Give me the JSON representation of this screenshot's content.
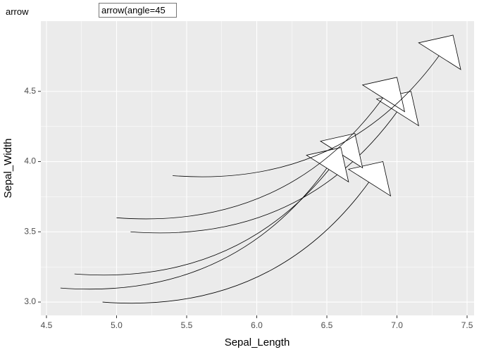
{
  "ui": {
    "label": "arrow",
    "input_value": "arrow(angle=45"
  },
  "chart_data": {
    "type": "curve",
    "x_label": "Sepal_Length",
    "y_label": "Sepal_Width",
    "segments": [
      {
        "x": 5.1,
        "y": 3.5,
        "xend": 7.1,
        "yend": 4.5
      },
      {
        "x": 4.9,
        "y": 3.0,
        "xend": 6.9,
        "yend": 4.0
      },
      {
        "x": 4.7,
        "y": 3.2,
        "xend": 6.7,
        "yend": 4.2
      },
      {
        "x": 4.6,
        "y": 3.1,
        "xend": 6.6,
        "yend": 4.1
      },
      {
        "x": 5.0,
        "y": 3.6,
        "xend": 7.0,
        "yend": 4.6
      },
      {
        "x": 5.4,
        "y": 3.9,
        "xend": 7.4,
        "yend": 4.9
      }
    ],
    "arrow_angle": 45,
    "xlim": [
      4.46,
      7.55
    ],
    "ylim": [
      2.905,
      5.0
    ],
    "xticks": [
      {
        "value": 4.5,
        "label": "4.5"
      },
      {
        "value": 5.0,
        "label": "5.0"
      },
      {
        "value": 5.5,
        "label": "5.5"
      },
      {
        "value": 6.0,
        "label": "6.0"
      },
      {
        "value": 6.5,
        "label": "6.5"
      },
      {
        "value": 7.0,
        "label": "7.0"
      },
      {
        "value": 7.5,
        "label": "7.5"
      }
    ],
    "yticks": [
      {
        "value": 3.0,
        "label": "3.0"
      },
      {
        "value": 3.5,
        "label": "3.5"
      },
      {
        "value": 4.0,
        "label": "4.0"
      },
      {
        "value": 4.5,
        "label": "4.5"
      }
    ],
    "grid": true
  }
}
